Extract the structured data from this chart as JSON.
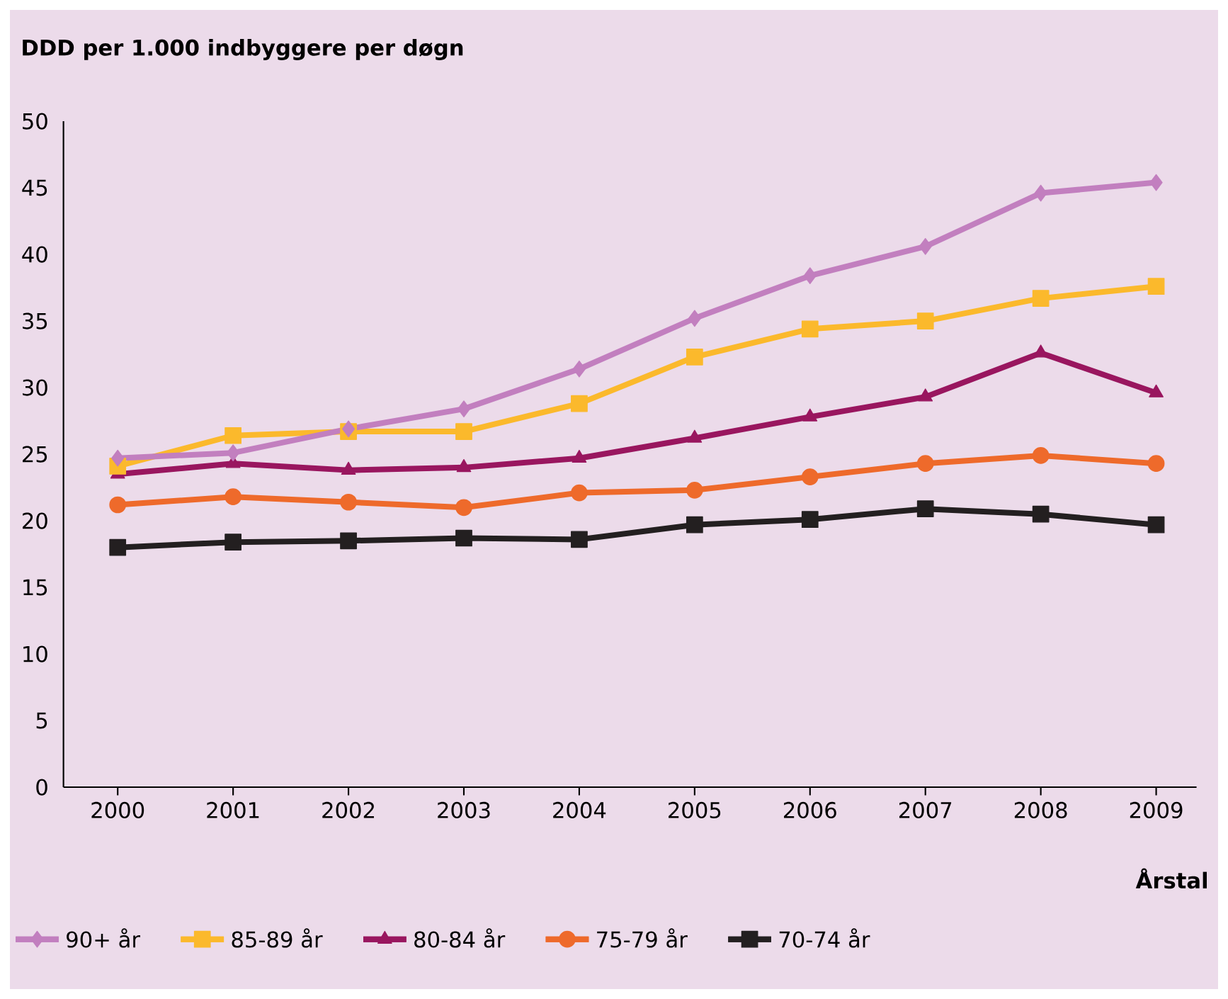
{
  "chart_data": {
    "type": "line",
    "ylabel": "DDD per 1.000 indbyggere per døgn",
    "xlabel": "Årstal",
    "categories": [
      "2000",
      "2001",
      "2002",
      "2003",
      "2004",
      "2005",
      "2006",
      "2007",
      "2008",
      "2009"
    ],
    "ylim": [
      0,
      50
    ],
    "yticks": [
      0,
      5,
      10,
      15,
      20,
      25,
      30,
      35,
      40,
      45,
      50
    ],
    "grid": false,
    "legend": "bottom",
    "line_style": "solid",
    "series": [
      {
        "name": "90+ år",
        "color": "#c27fbf",
        "marker": "diamond",
        "values": [
          24.7,
          25.1,
          26.9,
          28.4,
          31.4,
          35.2,
          38.4,
          40.6,
          44.6,
          45.4
        ]
      },
      {
        "name": "85-89 år",
        "color": "#fbb92c",
        "marker": "square",
        "values": [
          24.1,
          26.4,
          26.7,
          26.7,
          28.8,
          32.3,
          34.4,
          35.0,
          36.7,
          37.6
        ]
      },
      {
        "name": "80-84 år",
        "color": "#99165f",
        "marker": "triangle",
        "values": [
          23.5,
          24.3,
          23.8,
          24.0,
          24.7,
          26.2,
          27.8,
          29.3,
          32.6,
          29.6
        ]
      },
      {
        "name": "75-79 år",
        "color": "#ee6a2b",
        "marker": "circle",
        "values": [
          21.2,
          21.8,
          21.4,
          21.0,
          22.1,
          22.3,
          23.3,
          24.3,
          24.9,
          24.3
        ]
      },
      {
        "name": "70-74 år",
        "color": "#231f20",
        "marker": "square",
        "values": [
          18.0,
          18.4,
          18.5,
          18.7,
          18.6,
          19.7,
          20.1,
          20.9,
          20.5,
          19.7
        ]
      }
    ]
  }
}
